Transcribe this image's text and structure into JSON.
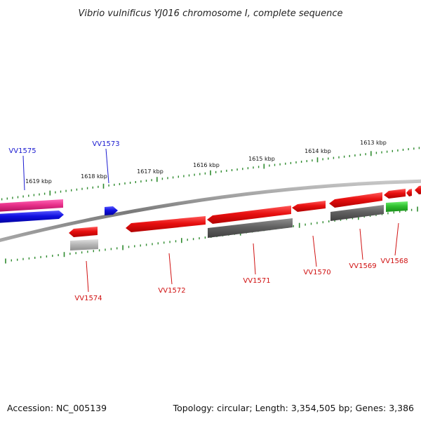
{
  "title": "Vibrio vulnificus YJ016 chromosome I, complete sequence",
  "footer": {
    "accession": "Accession: NC_005139",
    "summary": "Topology: circular; Length: 3,354,505 bp; Genes: 3,386"
  },
  "colors": {
    "backbone": "#8a8a8a",
    "ticks": "#2e8b2e",
    "reverse_gene": "#e81010",
    "forward_gene": "#1010e0",
    "label_forward": "#1a1ad0",
    "label_reverse": "#d01010"
  },
  "scale": {
    "labels": [
      "1619 kbp",
      "1618 kbp",
      "1617 kbp",
      "1616 kbp",
      "1615 kbp",
      "1614 kbp",
      "1613 kbp"
    ]
  },
  "genes": [
    {
      "label": "VV1575",
      "strand": "+",
      "color": "#1010e0"
    },
    {
      "label": "VV1573",
      "strand": "+",
      "color": "#1010e0"
    },
    {
      "label": "VV1574",
      "strand": "-",
      "color": "#e81010"
    },
    {
      "label": "VV1572",
      "strand": "-",
      "color": "#e81010"
    },
    {
      "label": "VV1571",
      "strand": "-",
      "color": "#e81010"
    },
    {
      "label": "VV1570",
      "strand": "-",
      "color": "#e81010"
    },
    {
      "label": "VV1569",
      "strand": "-",
      "color": "#e81010"
    },
    {
      "label": "VV1568",
      "strand": "-",
      "color": "#e81010"
    }
  ],
  "features": [
    {
      "name": "pink-feature",
      "color": "#e8308a"
    },
    {
      "name": "gray-feature",
      "color": "#606060"
    },
    {
      "name": "light-gray-feature",
      "color": "#b8b8b8"
    },
    {
      "name": "green-feature",
      "color": "#30c030"
    }
  ]
}
